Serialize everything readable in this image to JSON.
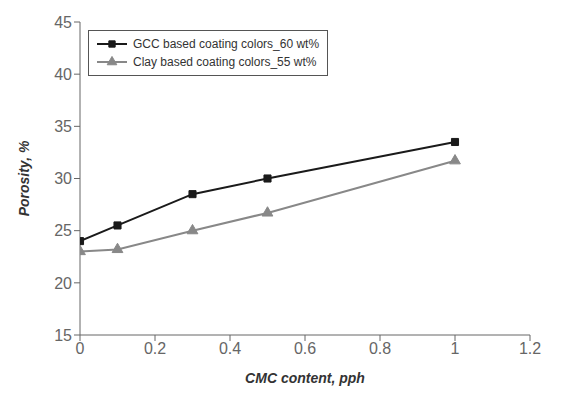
{
  "chart_data": {
    "type": "line",
    "xlabel": "CMC content, pph",
    "ylabel": "Porosity, %",
    "x": [
      0,
      0.1,
      0.3,
      0.5,
      1.0
    ],
    "series": [
      {
        "name": "GCC based coating colors_60 wt%",
        "color": "#1a1a1a",
        "marker": "square",
        "values": [
          24.0,
          25.5,
          28.5,
          30.0,
          33.5
        ]
      },
      {
        "name": "Clay based coating colors_55 wt%",
        "color": "#888888",
        "marker": "triangle",
        "values": [
          23.0,
          23.2,
          25.0,
          26.7,
          31.7
        ]
      }
    ],
    "xlim": [
      0,
      1.2
    ],
    "ylim": [
      15,
      45
    ],
    "xticks": [
      0,
      0.2,
      0.4,
      0.6,
      0.8,
      1.0,
      1.2
    ],
    "yticks": [
      15,
      20,
      25,
      30,
      35,
      40,
      45
    ],
    "legend": "upper left",
    "grid": false
  }
}
